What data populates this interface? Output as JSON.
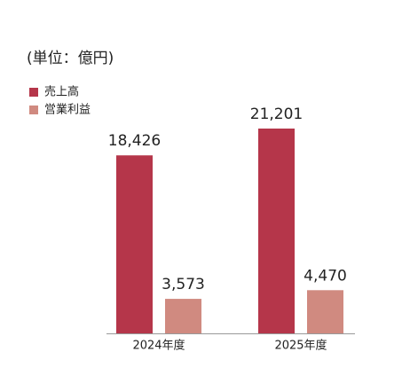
{
  "chart_data": {
    "type": "bar",
    "unit_label": "(単位：億円)",
    "categories": [
      "2024年度",
      "2025年度"
    ],
    "series": [
      {
        "name": "売上高",
        "color": "#b5364a",
        "values": [
          18426,
          21201
        ],
        "value_labels": [
          "18,426",
          "21,201"
        ]
      },
      {
        "name": "営業利益",
        "color": "#d08a80",
        "values": [
          3573,
          4470
        ],
        "value_labels": [
          "3,573",
          "4,470"
        ]
      }
    ]
  }
}
